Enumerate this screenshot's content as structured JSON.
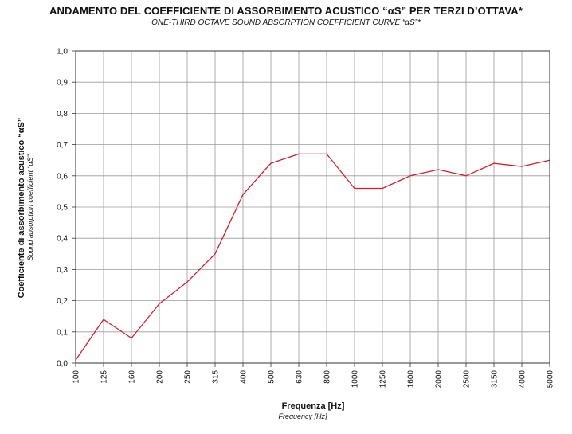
{
  "header": {
    "title": "ANDAMENTO DEL COEFFICIENTE DI ASSORBIMENTO ACUSTICO “αS” PER TERZI D’OTTAVA*",
    "subtitle": "ONE-THIRD OCTAVE SOUND ABSORPTION COEFFICIENT CURVE “αS”*"
  },
  "chart_data": {
    "type": "line",
    "title": "ANDAMENTO DEL COEFFICIENTE DI ASSORBIMENTO ACUSTICO “αS” PER TERZI D’OTTAVA*",
    "subtitle": "ONE-THIRD OCTAVE SOUND ABSORPTION COEFFICIENT CURVE “αS”*",
    "xlabel": "Frequenza [Hz]",
    "xlabel_sub": "Frequency [Hz]",
    "ylabel": "Coefficiente di assorbimento acustico “αS”",
    "ylabel_sub": "Sound absorption coefficient “αS”",
    "categories": [
      "100",
      "125",
      "160",
      "200",
      "250",
      "315",
      "400",
      "500",
      "630",
      "800",
      "1000",
      "1250",
      "1600",
      "2000",
      "2500",
      "3150",
      "4000",
      "5000"
    ],
    "series": [
      {
        "values": [
          0.01,
          0.14,
          0.08,
          0.19,
          0.26,
          0.35,
          0.54,
          0.64,
          0.67,
          0.67,
          0.56,
          0.56,
          0.6,
          0.62,
          0.6,
          0.64,
          0.63,
          0.65
        ]
      }
    ],
    "ylim": [
      0,
      1.0
    ],
    "yticks": [
      "0,0",
      "0,1",
      "0,2",
      "0,3",
      "0,4",
      "0,5",
      "0,6",
      "0,7",
      "0,8",
      "0,9",
      "1,0"
    ],
    "grid": true,
    "line_color": "#d21f2d",
    "grid_color": "#9a9a9a"
  }
}
